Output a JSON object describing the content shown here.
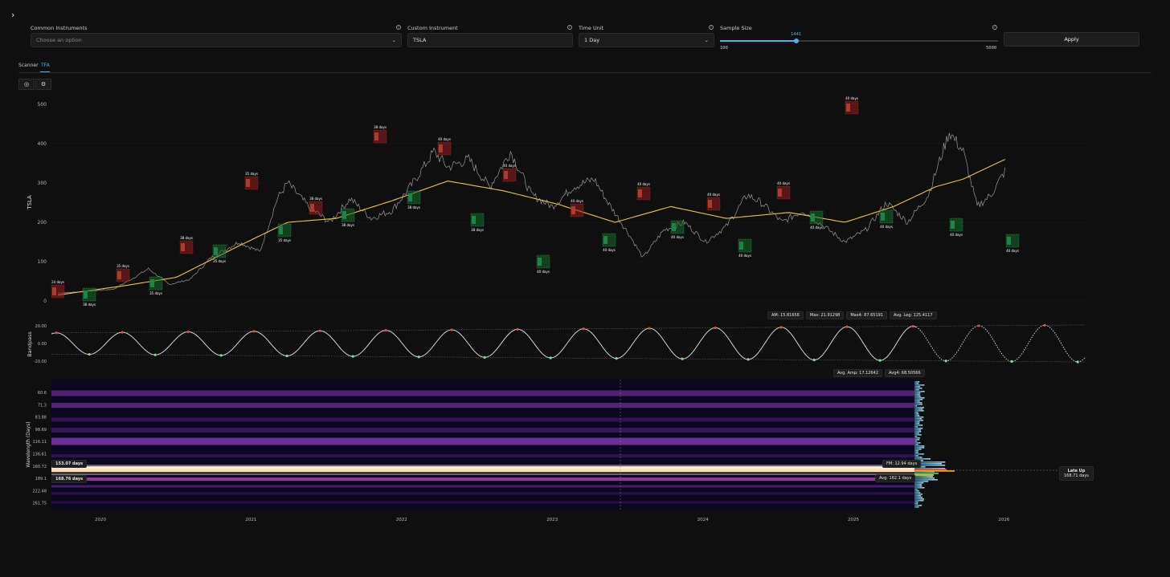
{
  "controls": {
    "common_label": "Common Instruments",
    "common_placeholder": "Choose an option",
    "custom_label": "Custom Instrument",
    "custom_value": "TSLA",
    "time_label": "Time Unit",
    "time_value": "1 Day",
    "sample_label": "Sample Size",
    "sample_value": "1441",
    "sample_min": "100",
    "sample_max": "5000",
    "sample_fraction": 0.275,
    "apply_label": "Apply"
  },
  "tabs": {
    "scanner": "Scanner",
    "tfa": "TFA"
  },
  "price_chart": {
    "ylabel": "TSLA",
    "yticks": [
      "500",
      "400",
      "300",
      "200",
      "100",
      "0"
    ],
    "highs": [
      "24 days",
      "35 days",
      "38 days",
      "35 days",
      "38 days",
      "38 days",
      "40 days",
      "40 days",
      "40 days",
      "40 days",
      "40 days",
      "40 days",
      "40 days"
    ],
    "lows": [
      "38 days",
      "35 days",
      "35 days",
      "35 days",
      "38 days",
      "38 days",
      "38 days",
      "40 days",
      "40 days",
      "40 days",
      "40 days",
      "40 days",
      "40 days",
      "40 days",
      "40 days"
    ]
  },
  "bandpass": {
    "ylabel": "Bandpass",
    "yticks": [
      "20.00",
      "0.00",
      "-20.00"
    ],
    "stats_top": [
      "AM: 15.81656",
      "Max: 21.91298",
      "Max4: 87.65191",
      "Avg. Leg: 125.4117"
    ],
    "stats_bottom": [
      "Avg. Amp: 17.12642",
      "Avg4: 68.50566"
    ]
  },
  "spectrogram": {
    "ylabel": "Wavelength (Days)",
    "yticks": [
      "60.6",
      "71.3",
      "83.88",
      "98.69",
      "116.11",
      "136.61",
      "160.72",
      "189.1",
      "222.48",
      "261.75"
    ],
    "top_line": "153.07 days",
    "bottom_line": "168.76 days",
    "fm": "FM: 12.94 days",
    "avg": "Avg: 162.1 days",
    "status_title": "Late Up",
    "status_value": "168.71 days"
  },
  "xaxis": {
    "years": [
      "2020",
      "2021",
      "2022",
      "2023",
      "2024",
      "2025",
      "2026"
    ]
  },
  "colors": {
    "accent": "#4fb3e8",
    "trend": "#f2c14e",
    "high": "#c0392b",
    "low": "#27ae60"
  }
}
